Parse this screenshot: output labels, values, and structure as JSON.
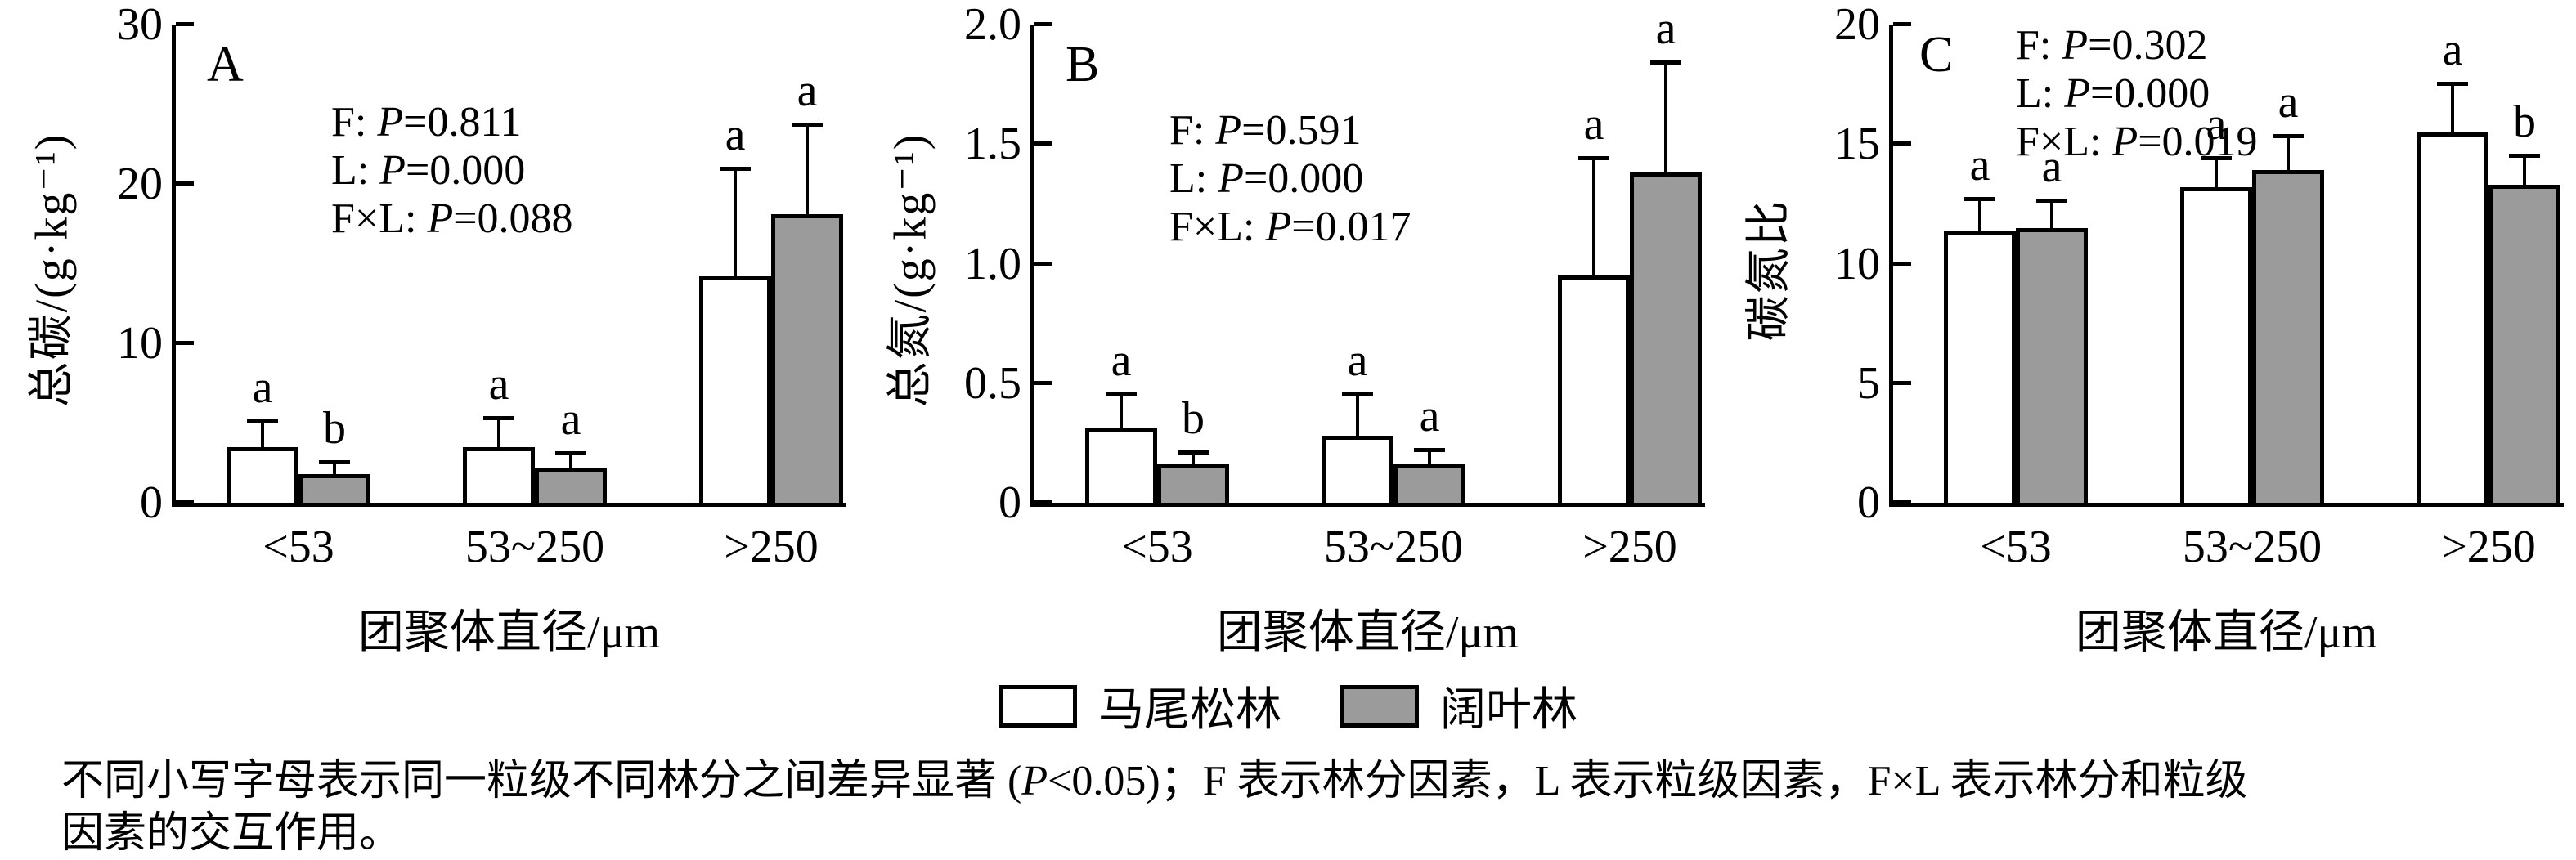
{
  "chart_data": {
    "type": "bar",
    "categories": [
      "<53",
      "53~250",
      ">250"
    ],
    "xlabel": "团聚体直径/μm",
    "axis_color": "#000000",
    "panels": [
      {
        "letter": "A",
        "ylabel": "总碳/(g·kg⁻¹)",
        "ymax": 30,
        "yticks": [
          "0",
          "10",
          "20",
          "30"
        ],
        "stats": [
          {
            "pre": "F: ",
            "p": "P",
            "post": "=0.811"
          },
          {
            "pre": "L: ",
            "p": "P",
            "post": "=0.000"
          },
          {
            "pre": "F×L: ",
            "p": "P",
            "post": "=0.088"
          }
        ]
      },
      {
        "letter": "B",
        "ylabel": "总氮/(g·kg⁻¹)",
        "ymax": 2.0,
        "yticks": [
          "0",
          "0.5",
          "1.0",
          "1.5",
          "2.0"
        ],
        "stats": [
          {
            "pre": "F: ",
            "p": "P",
            "post": "=0.591"
          },
          {
            "pre": "L: ",
            "p": "P",
            "post": "=0.000"
          },
          {
            "pre": "F×L: ",
            "p": "P",
            "post": "=0.017"
          }
        ]
      },
      {
        "letter": "C",
        "ylabel": "碳氮比",
        "ymax": 20,
        "yticks": [
          "0",
          "5",
          "10",
          "15",
          "20"
        ],
        "stats": [
          {
            "pre": "F: ",
            "p": "P",
            "post": "=0.302"
          },
          {
            "pre": "L: ",
            "p": "P",
            "post": "=0.000"
          },
          {
            "pre": "F×L: ",
            "p": "P",
            "post": "=0.019"
          }
        ]
      }
    ],
    "series": [
      {
        "name": "马尾松林",
        "color": "#ffffff",
        "values": [
          [
            3.5,
            3.5,
            14.2
          ],
          [
            0.31,
            0.28,
            0.95
          ],
          [
            11.4,
            13.2,
            15.5
          ]
        ],
        "errors": [
          [
            1.6,
            1.8,
            6.7
          ],
          [
            0.14,
            0.17,
            0.49
          ],
          [
            1.3,
            1.2,
            2.0
          ]
        ],
        "letters": [
          [
            "a",
            "a",
            "a"
          ],
          [
            "a",
            "a",
            "a"
          ],
          [
            "a",
            "a",
            "a"
          ]
        ]
      },
      {
        "name": "阔叶林",
        "color": "#9b9b9b",
        "values": [
          [
            1.8,
            2.2,
            18.1
          ],
          [
            0.16,
            0.16,
            1.38
          ],
          [
            11.5,
            13.9,
            13.3
          ]
        ],
        "errors": [
          [
            0.7,
            0.9,
            5.6
          ],
          [
            0.05,
            0.06,
            0.46
          ],
          [
            1.1,
            1.4,
            1.2
          ]
        ],
        "letters": [
          [
            "b",
            "a",
            "a"
          ],
          [
            "b",
            "a",
            "a"
          ],
          [
            "a",
            "a",
            "b"
          ]
        ]
      }
    ]
  },
  "caption": {
    "line1_pre": "不同小写字母表示同一粒级不同林分之间差异显著 (",
    "line1_p": "P",
    "line1_post": "<0.05)；F 表示林分因素，L 表示粒级因素，F×L 表示林分和粒级",
    "line2": "因素的交互作用。"
  }
}
